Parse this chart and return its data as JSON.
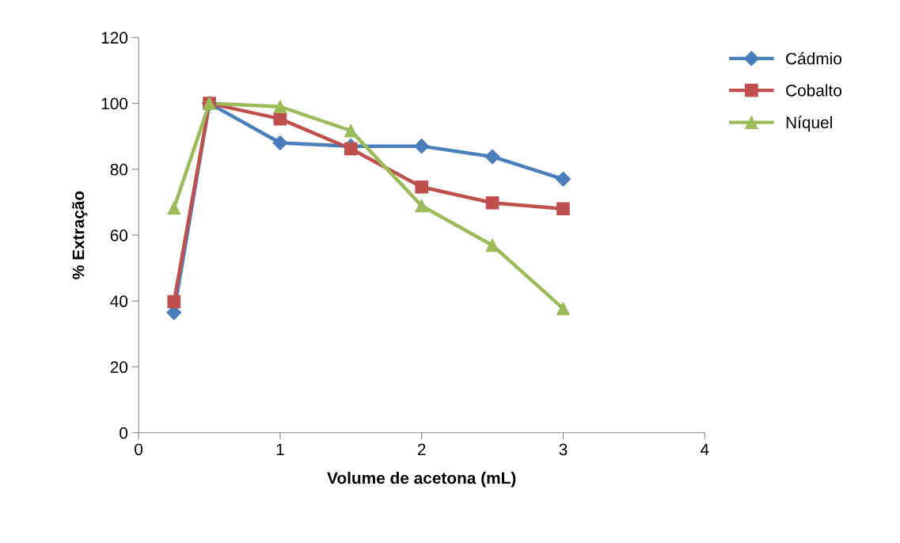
{
  "chart_data": {
    "type": "line",
    "xlabel": "Volume de acetona (mL)",
    "ylabel": "% Extração",
    "x": [
      0.25,
      0.5,
      1,
      1.5,
      2,
      2.5,
      3
    ],
    "series": [
      {
        "name": "Cádmio",
        "color": "#4a7ebb",
        "marker": "diamond",
        "values": [
          36.5,
          100,
          88,
          87,
          87,
          83.8,
          77
        ]
      },
      {
        "name": "Cobalto",
        "color": "#c0504d",
        "marker": "square",
        "values": [
          39.8,
          100,
          95.3,
          86.2,
          74.6,
          69.8,
          68
        ]
      },
      {
        "name": "Níquel",
        "color": "#9bbb59",
        "marker": "triangle",
        "values": [
          68.2,
          100,
          99,
          91.7,
          68.9,
          56.9,
          37.7
        ]
      }
    ],
    "xlim": [
      0,
      4
    ],
    "xticks": [
      0,
      1,
      2,
      3,
      4
    ],
    "ylim": [
      0,
      120
    ],
    "yticks": [
      0,
      20,
      40,
      60,
      80,
      100,
      120
    ],
    "grid": false,
    "legend": "right",
    "line_style": "solid"
  }
}
